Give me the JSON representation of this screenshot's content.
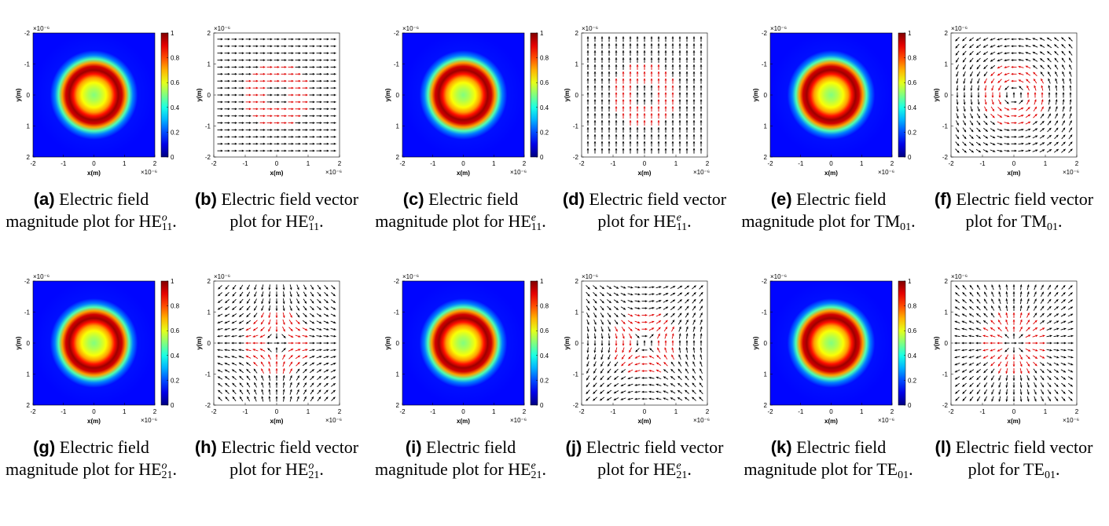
{
  "exponent_label": "×10⁻⁶",
  "colorbar_ticks": [
    "0",
    "0.2",
    "0.4",
    "0.6",
    "0.8",
    "1"
  ],
  "axis_ticks": [
    "-2",
    "-1",
    "0",
    "1",
    "2"
  ],
  "panels": [
    {
      "id": "a",
      "kind": "magnitude",
      "mode": "HE11o",
      "x": "x(m)",
      "y": "y(m)",
      "cap_label": "(a)",
      "cap_text": "Electric field magnitude plot for",
      "cap_base": "HE",
      "cap_sup": "o",
      "cap_sub": "11",
      "cap_end": "."
    },
    {
      "id": "b",
      "kind": "vector",
      "mode": "HE11o",
      "x": "x(m)",
      "y": "y(m)",
      "cap_label": "(b)",
      "cap_text": "Electric field vector plot for",
      "cap_base": "HE",
      "cap_sup": "o",
      "cap_sub": "11",
      "cap_end": "."
    },
    {
      "id": "c",
      "kind": "magnitude",
      "mode": "HE11e",
      "x": "x(m)",
      "y": "y(m)",
      "cap_label": "(c)",
      "cap_text": "Electric field magnitude plot for",
      "cap_base": "HE",
      "cap_sup": "e",
      "cap_sub": "11",
      "cap_end": "."
    },
    {
      "id": "d",
      "kind": "vector",
      "mode": "HE11e",
      "x": "x(m)",
      "y": "y(m)",
      "cap_label": "(d)",
      "cap_text": "Electric field vector plot for",
      "cap_base": "HE",
      "cap_sup": "e",
      "cap_sub": "11",
      "cap_end": "."
    },
    {
      "id": "e",
      "kind": "magnitude",
      "mode": "TM01",
      "x": "x(m)",
      "y": "y(m)",
      "cap_label": "(e)",
      "cap_text": "Electric field magnitude plot for",
      "cap_base": "TM",
      "cap_sup": "",
      "cap_sub": "01",
      "cap_end": "."
    },
    {
      "id": "f",
      "kind": "vector",
      "mode": "TM01",
      "x": "x(m)",
      "y": "y(m)",
      "cap_label": "(f)",
      "cap_text": "Electric field vector plot for",
      "cap_base": "TM",
      "cap_sup": "",
      "cap_sub": "01",
      "cap_end": "."
    },
    {
      "id": "g",
      "kind": "magnitude",
      "mode": "HE21o",
      "x": "x(m)",
      "y": "y(m)",
      "cap_label": "(g)",
      "cap_text": "Electric field magnitude plot for",
      "cap_base": "HE",
      "cap_sup": "o",
      "cap_sub": "21",
      "cap_end": "."
    },
    {
      "id": "h",
      "kind": "vector",
      "mode": "HE21o",
      "x": "x(m)",
      "y": "y(m)",
      "cap_label": "(h)",
      "cap_text": "Electric field vector plot for",
      "cap_base": "HE",
      "cap_sup": "o",
      "cap_sub": "21",
      "cap_end": "."
    },
    {
      "id": "i",
      "kind": "magnitude",
      "mode": "HE21e",
      "x": "x(m)",
      "y": "y(m)",
      "cap_label": "(i)",
      "cap_text": "Electric field magnitude plot for",
      "cap_base": "HE",
      "cap_sup": "e",
      "cap_sub": "21",
      "cap_end": "."
    },
    {
      "id": "j",
      "kind": "vector",
      "mode": "HE21e",
      "x": "x(m)",
      "y": "y(m)",
      "cap_label": "(j)",
      "cap_text": "Electric field vector plot for",
      "cap_base": "HE",
      "cap_sup": "e",
      "cap_sub": "21",
      "cap_end": "."
    },
    {
      "id": "k",
      "kind": "magnitude",
      "mode": "TE01",
      "x": "x(m)",
      "y": "y(m)",
      "cap_label": "(k)",
      "cap_text": "Electric field magnitude plot for",
      "cap_base": "TE",
      "cap_sup": "",
      "cap_sub": "01",
      "cap_end": "."
    },
    {
      "id": "l",
      "kind": "vector",
      "mode": "TE01",
      "x": "x(m)",
      "y": "y(m)",
      "cap_label": "(l)",
      "cap_text": "Electric field vector plot for",
      "cap_base": "TE",
      "cap_sup": "",
      "cap_sub": "01",
      "cap_end": "."
    }
  ],
  "chart_data": {
    "type": "heatmap",
    "description_free": true,
    "xlim": [
      -2,
      2
    ],
    "ylim": [
      -2,
      2
    ],
    "colorbar_range": [
      0,
      1
    ],
    "ring_radius_peak": 0.9,
    "colormap": "jet",
    "vector_colors": {
      "core": "#e00000",
      "cladding": "#000000"
    }
  }
}
